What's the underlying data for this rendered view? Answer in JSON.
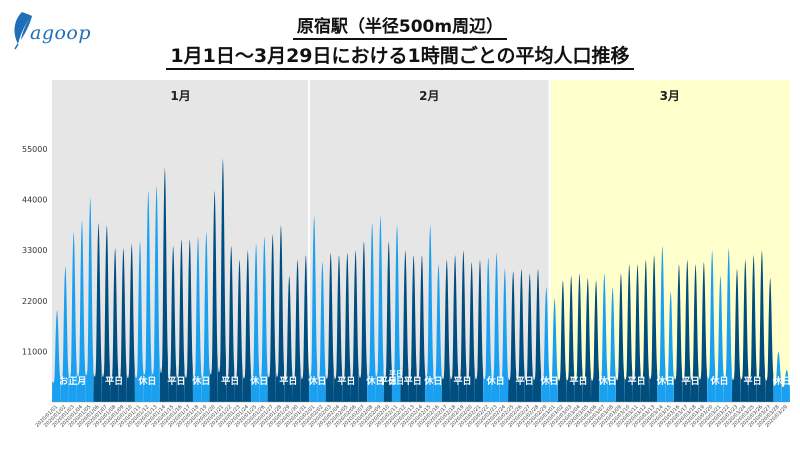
{
  "header": {
    "logo_text": "agoop",
    "title_line1": "原宿駅（半径500m周辺）",
    "title_line2": "1月1日～3月29日における1時間ごとの平均人口推移"
  },
  "colors": {
    "weekday": "#004d80",
    "holiday": "#1aa0f0",
    "bg_jan_feb": "#e6e6e6",
    "bg_mar": "#ffffcc"
  },
  "chart_data": {
    "type": "area",
    "title": "1月1日～3月29日における1時間ごとの平均人口推移",
    "subtitle": "原宿駅（半径500m周辺）",
    "xlabel": "",
    "ylabel": "",
    "ylim": [
      0,
      70000
    ],
    "yticks": [
      11000,
      22000,
      33000,
      44000,
      55000
    ],
    "grid": false,
    "legend": "none",
    "months": [
      {
        "label": "1月",
        "start_day": 1,
        "end_day": 31
      },
      {
        "label": "2月",
        "start_day": 32,
        "end_day": 60
      },
      {
        "label": "3月",
        "start_day": 61,
        "end_day": 89
      }
    ],
    "x": [
      "2020/01/01",
      "2020/01/02",
      "2020/01/03",
      "2020/01/04",
      "2020/01/05",
      "2020/01/06",
      "2020/01/07",
      "2020/01/08",
      "2020/01/09",
      "2020/01/10",
      "2020/01/11",
      "2020/01/12",
      "2020/01/13",
      "2020/01/14",
      "2020/01/15",
      "2020/01/16",
      "2020/01/17",
      "2020/01/18",
      "2020/01/19",
      "2020/01/20",
      "2020/01/21",
      "2020/01/22",
      "2020/01/23",
      "2020/01/24",
      "2020/01/25",
      "2020/01/26",
      "2020/01/27",
      "2020/01/28",
      "2020/01/29",
      "2020/01/30",
      "2020/01/31",
      "2020/02/01",
      "2020/02/02",
      "2020/02/03",
      "2020/02/04",
      "2020/02/05",
      "2020/02/06",
      "2020/02/07",
      "2020/02/08",
      "2020/02/09",
      "2020/02/10",
      "2020/02/11",
      "2020/02/12",
      "2020/02/13",
      "2020/02/14",
      "2020/02/15",
      "2020/02/16",
      "2020/02/17",
      "2020/02/18",
      "2020/02/19",
      "2020/02/20",
      "2020/02/21",
      "2020/02/22",
      "2020/02/23",
      "2020/02/24",
      "2020/02/25",
      "2020/02/26",
      "2020/02/27",
      "2020/02/28",
      "2020/02/29",
      "2020/03/01",
      "2020/03/02",
      "2020/03/03",
      "2020/03/04",
      "2020/03/05",
      "2020/03/06",
      "2020/03/07",
      "2020/03/08",
      "2020/03/09",
      "2020/03/10",
      "2020/03/11",
      "2020/03/12",
      "2020/03/13",
      "2020/03/14",
      "2020/03/15",
      "2020/03/16",
      "2020/03/17",
      "2020/03/18",
      "2020/03/19",
      "2020/03/20",
      "2020/03/21",
      "2020/03/22",
      "2020/03/23",
      "2020/03/24",
      "2020/03/25",
      "2020/03/26",
      "2020/03/27",
      "2020/03/28",
      "2020/03/29"
    ],
    "series": [
      {
        "daily_peak": [
          20000,
          29500,
          37000,
          39500,
          44500,
          39000,
          38500,
          33500,
          33500,
          34500,
          35000,
          46000,
          47000,
          51000,
          34000,
          35500,
          35500,
          36000,
          37000,
          46000,
          53000,
          34000,
          31000,
          33000,
          34500,
          36000,
          36500,
          38500,
          27500,
          31000,
          32000,
          40500,
          30500,
          32500,
          32000,
          32500,
          33000,
          35000,
          39000,
          40500,
          35000,
          38500,
          33000,
          32000,
          32000,
          38500,
          30000,
          31000,
          32000,
          33000,
          30500,
          31000,
          31500,
          32500,
          29000,
          28500,
          29000,
          28000,
          29000,
          25000,
          22500,
          26500,
          27500,
          28000,
          27000,
          26500,
          28000,
          25000,
          28000,
          30000,
          30000,
          31000,
          32000,
          34000,
          24000,
          30000,
          31000,
          30000,
          30500,
          33000,
          27500,
          33500,
          29000,
          31000,
          32000,
          33000,
          27000,
          11000,
          7000
        ],
        "daily_min": 3000
      }
    ],
    "band_labels": [
      {
        "text": "お正月",
        "start_day": 1,
        "end_day": 5,
        "kind": "holiday"
      },
      {
        "text": "平日",
        "start_day": 6,
        "end_day": 10,
        "kind": "weekday"
      },
      {
        "text": "休日",
        "start_day": 11,
        "end_day": 13,
        "kind": "holiday"
      },
      {
        "text": "平日",
        "start_day": 14,
        "end_day": 17,
        "kind": "weekday"
      },
      {
        "text": "休日",
        "start_day": 18,
        "end_day": 19,
        "kind": "holiday"
      },
      {
        "text": "平日",
        "start_day": 20,
        "end_day": 24,
        "kind": "weekday"
      },
      {
        "text": "休日",
        "start_day": 25,
        "end_day": 26,
        "kind": "holiday"
      },
      {
        "text": "平日",
        "start_day": 27,
        "end_day": 31,
        "kind": "weekday"
      },
      {
        "text": "休日",
        "start_day": 32,
        "end_day": 33,
        "kind": "holiday"
      },
      {
        "text": "平日",
        "start_day": 34,
        "end_day": 38,
        "kind": "weekday"
      },
      {
        "text": "休日",
        "start_day": 39,
        "end_day": 40,
        "kind": "holiday"
      },
      {
        "text": "平日",
        "start_day": 41,
        "end_day": 41,
        "kind": "weekday"
      },
      {
        "text": "休日",
        "start_day": 42,
        "end_day": 42,
        "kind": "holiday",
        "top": "平日"
      },
      {
        "text": "平日",
        "start_day": 43,
        "end_day": 45,
        "kind": "weekday"
      },
      {
        "text": "休日",
        "start_day": 46,
        "end_day": 47,
        "kind": "holiday"
      },
      {
        "text": "平日",
        "start_day": 48,
        "end_day": 52,
        "kind": "weekday"
      },
      {
        "text": "休日",
        "start_day": 53,
        "end_day": 55,
        "kind": "holiday"
      },
      {
        "text": "平日",
        "start_day": 56,
        "end_day": 59,
        "kind": "weekday"
      },
      {
        "text": "休日",
        "start_day": 60,
        "end_day": 61,
        "kind": "holiday"
      },
      {
        "text": "平日",
        "start_day": 62,
        "end_day": 66,
        "kind": "weekday"
      },
      {
        "text": "休日",
        "start_day": 67,
        "end_day": 68,
        "kind": "holiday"
      },
      {
        "text": "平日",
        "start_day": 69,
        "end_day": 73,
        "kind": "weekday"
      },
      {
        "text": "休日",
        "start_day": 74,
        "end_day": 75,
        "kind": "holiday"
      },
      {
        "text": "平日",
        "start_day": 76,
        "end_day": 79,
        "kind": "weekday"
      },
      {
        "text": "休日",
        "start_day": 80,
        "end_day": 82,
        "kind": "holiday"
      },
      {
        "text": "平日",
        "start_day": 83,
        "end_day": 87,
        "kind": "weekday"
      },
      {
        "text": "休日",
        "start_day": 88,
        "end_day": 89,
        "kind": "holiday"
      }
    ]
  }
}
